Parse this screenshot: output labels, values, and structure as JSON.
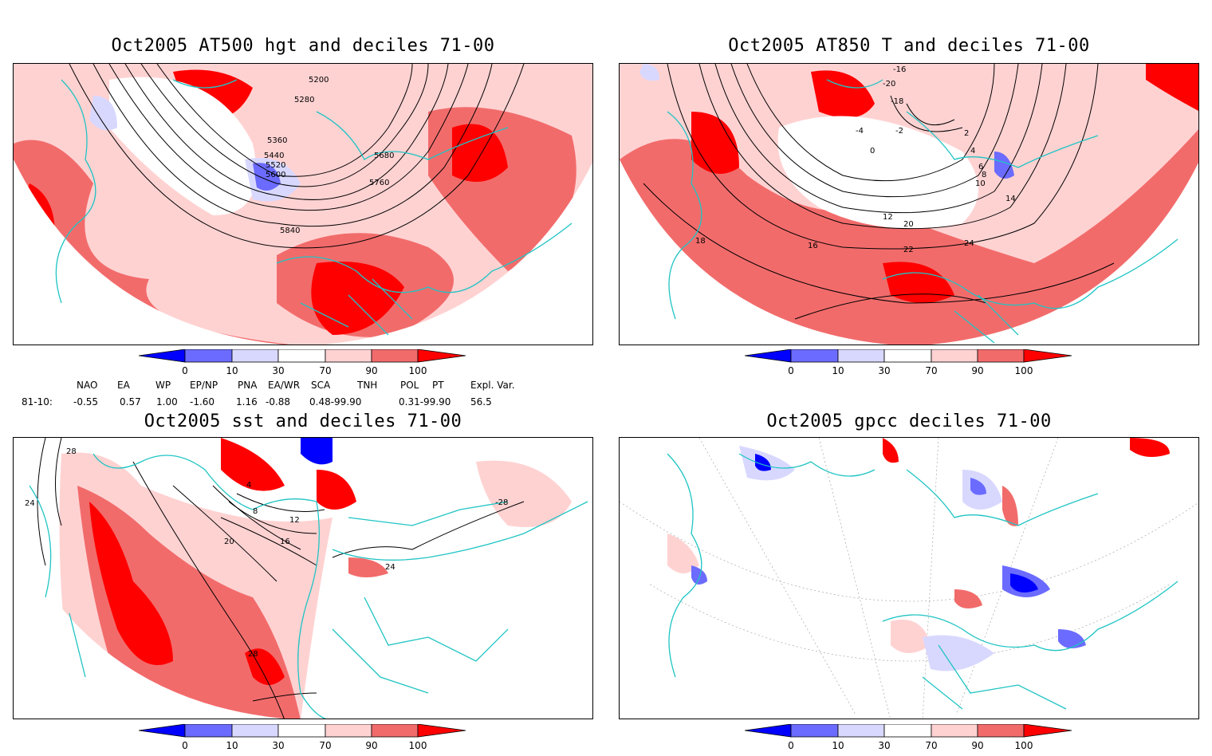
{
  "panels": [
    {
      "id": "p1",
      "title": "Oct2005 AT500 hgt and deciles 71-00",
      "contour_labels": [
        "5200",
        "5280",
        "5360",
        "5440",
        "5520",
        "5600",
        "5680",
        "5760",
        "5840"
      ]
    },
    {
      "id": "p2",
      "title": "Oct2005 AT850 T and deciles 71-00",
      "contour_labels": [
        "-16",
        "-20",
        "-18",
        "-4",
        "-2",
        "0",
        "2",
        "4",
        "6",
        "8",
        "10",
        "12",
        "14",
        "16",
        "18",
        "20",
        "22",
        "24"
      ]
    },
    {
      "id": "p3",
      "title": "Oct2005 sst and deciles 71-00",
      "contour_labels": [
        "28",
        "24",
        "4",
        "8",
        "12",
        "16",
        "20",
        "24",
        "28",
        "-28"
      ]
    },
    {
      "id": "p4",
      "title": "Oct2005 gpcc deciles 71-00",
      "contour_labels": []
    }
  ],
  "colorbar": {
    "ticks": [
      "0",
      "10",
      "30",
      "70",
      "90",
      "100"
    ],
    "colors": [
      "#0000ff",
      "#6b6bff",
      "#d8d8ff",
      "#ffffff",
      "#ffd2d2",
      "#f26b6b",
      "#ff0000"
    ]
  },
  "indices": {
    "row_label": "81-10:",
    "headers": [
      "NAO",
      "EA",
      "WP",
      "EP/NP",
      "PNA",
      "EA/WR",
      "SCA",
      "TNH",
      "POL",
      "PT",
      "Expl. Var."
    ],
    "values": [
      "-0.55",
      "0.57",
      "1.00",
      "-1.60",
      "1.16",
      "-0.88",
      "0.48-99.90",
      "",
      "0.31-99.90",
      "",
      "56.5"
    ]
  },
  "colors": {
    "coast": "#20c4c4",
    "pink": "#ffd2d2",
    "red_mid": "#f26b6b",
    "red": "#ff0000",
    "blue_light": "#d8d8ff",
    "blue_mid": "#6b6bff",
    "blue": "#0000ff"
  }
}
